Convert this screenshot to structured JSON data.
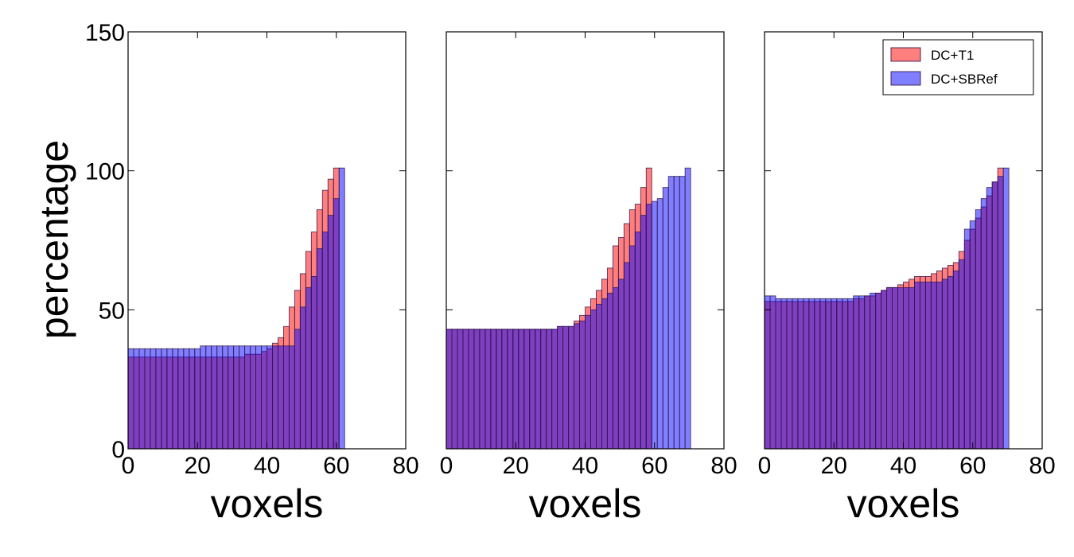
{
  "chart_data": [
    {
      "type": "histogram",
      "panel": "left",
      "xlabel": "voxels",
      "ylabel": "percentage",
      "xlim": [
        0,
        80
      ],
      "ylim": [
        0,
        150
      ],
      "xticks": [
        "0",
        "20",
        "40",
        "60",
        "80"
      ],
      "yticks": [
        "0",
        "50",
        "100",
        "150"
      ],
      "bin_width": 1.6,
      "series": [
        {
          "name": "DC+T1",
          "color": "#ff0000",
          "values": [
            33,
            33,
            33,
            33,
            33,
            33,
            33,
            33,
            33,
            33,
            33,
            33,
            33,
            33,
            33,
            33,
            33,
            33,
            33,
            33,
            33,
            34,
            34,
            34,
            35,
            36,
            38,
            40,
            44,
            51,
            57,
            63,
            71,
            78,
            86,
            93,
            97,
            101
          ]
        },
        {
          "name": "DC+SBRef",
          "color": "#0000ff",
          "values": [
            36,
            36,
            36,
            36,
            36,
            36,
            36,
            36,
            36,
            36,
            36,
            36,
            36,
            37,
            37,
            37,
            37,
            37,
            37,
            37,
            37,
            37,
            37,
            37,
            37,
            37,
            37,
            37,
            37,
            37,
            43,
            51,
            58,
            62,
            72,
            78,
            84,
            90,
            101
          ]
        }
      ]
    },
    {
      "type": "histogram",
      "panel": "middle",
      "xlabel": "voxels",
      "xlim": [
        0,
        80
      ],
      "ylim": [
        0,
        150
      ],
      "xticks": [
        "0",
        "20",
        "40",
        "60",
        "80"
      ],
      "bin_width": 1.6,
      "series": [
        {
          "name": "DC+T1",
          "color": "#ff0000",
          "values": [
            43,
            43,
            43,
            43,
            43,
            43,
            43,
            43,
            43,
            43,
            43,
            43,
            43,
            43,
            43,
            43,
            43,
            43,
            43,
            43,
            44,
            44,
            44,
            46,
            48,
            51,
            54,
            57,
            61,
            65,
            73,
            76,
            81,
            86,
            88,
            94,
            101
          ]
        },
        {
          "name": "DC+SBRef",
          "color": "#0000ff",
          "values": [
            43,
            43,
            43,
            43,
            43,
            43,
            43,
            43,
            43,
            43,
            43,
            43,
            43,
            43,
            43,
            43,
            43,
            43,
            43,
            43,
            44,
            44,
            44,
            45,
            46,
            48,
            50,
            52,
            54,
            56,
            58,
            61,
            67,
            73,
            78,
            84,
            88,
            89,
            90,
            94,
            98,
            98,
            98,
            101
          ]
        }
      ]
    },
    {
      "type": "histogram",
      "panel": "right",
      "xlabel": "voxels",
      "xlim": [
        0,
        80
      ],
      "ylim": [
        0,
        150
      ],
      "xticks": [
        "0",
        "20",
        "40",
        "60",
        "80"
      ],
      "bin_width": 1.6,
      "legend_position": "top-right",
      "series": [
        {
          "name": "DC+T1",
          "color": "#ff0000",
          "values": [
            53,
            53,
            53,
            53,
            53,
            53,
            53,
            53,
            53,
            53,
            53,
            53,
            53,
            53,
            53,
            53,
            54,
            54,
            55,
            55,
            56,
            57,
            58,
            58,
            59,
            60,
            61,
            62,
            62,
            62,
            63,
            64,
            65,
            66,
            67,
            71,
            75,
            79,
            83,
            87,
            91,
            96,
            101
          ]
        },
        {
          "name": "DC+SBRef",
          "color": "#0000ff",
          "values": [
            55,
            55,
            54,
            54,
            54,
            54,
            54,
            54,
            54,
            54,
            54,
            54,
            54,
            54,
            54,
            54,
            55,
            55,
            55,
            56,
            56,
            57,
            58,
            58,
            58,
            58,
            58,
            60,
            60,
            60,
            60,
            60,
            61,
            62,
            64,
            68,
            79,
            82,
            86,
            90,
            94,
            96,
            98,
            101
          ]
        }
      ]
    }
  ]
}
